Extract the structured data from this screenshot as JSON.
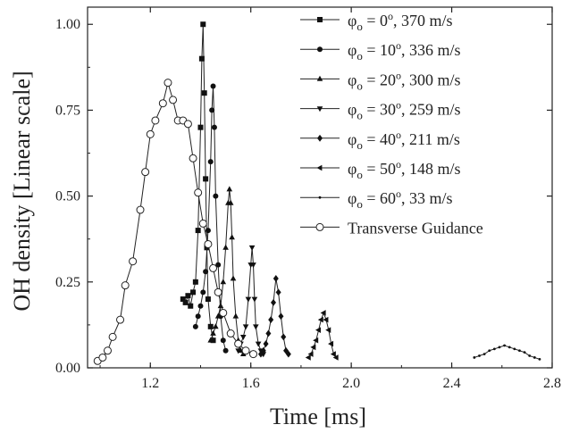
{
  "chart_data": {
    "type": "line",
    "title": "",
    "xlabel": "Time [ms]",
    "ylabel": "OH density [Linear scale]",
    "xlim": [
      0.95,
      2.8
    ],
    "ylim": [
      0.0,
      1.05
    ],
    "xticks": [
      1.2,
      1.6,
      2.0,
      2.4,
      2.8
    ],
    "yticks": [
      0.0,
      0.25,
      0.5,
      0.75,
      1.0
    ],
    "xtick_labels": [
      "1.2",
      "1.6",
      "2.0",
      "2.4",
      "2.8"
    ],
    "ytick_labels": [
      "0.00",
      "0.25",
      "0.50",
      "0.75",
      "1.00"
    ],
    "grid": false,
    "legend_position": "top-right",
    "series": [
      {
        "name": "φo = 0o, 370 m/s",
        "legend": {
          "symbol": "φ",
          "sub": "o",
          "eq": " = 0",
          "sup": "o",
          "rest": ", 370 m/s"
        },
        "marker": "square",
        "x": [
          1.33,
          1.34,
          1.35,
          1.36,
          1.37,
          1.38,
          1.39,
          1.4,
          1.405,
          1.41,
          1.415,
          1.42,
          1.425,
          1.43,
          1.44,
          1.45
        ],
        "y": [
          0.2,
          0.19,
          0.21,
          0.18,
          0.22,
          0.25,
          0.4,
          0.7,
          0.9,
          1.0,
          0.8,
          0.55,
          0.35,
          0.2,
          0.12,
          0.08
        ]
      },
      {
        "name": "φo = 10o, 336 m/s",
        "legend": {
          "symbol": "φ",
          "sub": "o",
          "eq": " = 10",
          "sup": "o",
          "rest": ", 336 m/s"
        },
        "marker": "circle",
        "x": [
          1.38,
          1.39,
          1.4,
          1.41,
          1.42,
          1.43,
          1.44,
          1.445,
          1.45,
          1.455,
          1.46,
          1.47,
          1.48,
          1.49,
          1.5
        ],
        "y": [
          0.12,
          0.15,
          0.18,
          0.22,
          0.28,
          0.4,
          0.6,
          0.75,
          0.82,
          0.7,
          0.5,
          0.3,
          0.15,
          0.08,
          0.05
        ]
      },
      {
        "name": "φo = 20o, 300 m/s",
        "legend": {
          "symbol": "φ",
          "sub": "o",
          "eq": " = 20",
          "sup": "o",
          "rest": ", 300 m/s"
        },
        "marker": "triangle-up",
        "x": [
          1.44,
          1.45,
          1.46,
          1.47,
          1.48,
          1.49,
          1.5,
          1.51,
          1.515,
          1.52,
          1.525,
          1.53,
          1.54,
          1.55,
          1.56,
          1.57
        ],
        "y": [
          0.08,
          0.1,
          0.12,
          0.15,
          0.18,
          0.25,
          0.35,
          0.48,
          0.52,
          0.48,
          0.38,
          0.26,
          0.15,
          0.08,
          0.05,
          0.04
        ]
      },
      {
        "name": "φo = 30o, 259 m/s",
        "legend": {
          "symbol": "φ",
          "sub": "o",
          "eq": " = 30",
          "sup": "o",
          "rest": ", 259 m/s"
        },
        "marker": "triangle-down",
        "x": [
          1.55,
          1.56,
          1.57,
          1.58,
          1.59,
          1.6,
          1.605,
          1.61,
          1.615,
          1.62,
          1.63,
          1.64,
          1.65
        ],
        "y": [
          0.05,
          0.07,
          0.09,
          0.12,
          0.2,
          0.3,
          0.35,
          0.3,
          0.2,
          0.12,
          0.07,
          0.05,
          0.04
        ]
      },
      {
        "name": "φo = 40o, 211 m/s",
        "legend": {
          "symbol": "φ",
          "sub": "o",
          "eq": " = 40",
          "sup": "o",
          "rest": ", 211 m/s"
        },
        "marker": "diamond",
        "x": [
          1.64,
          1.65,
          1.66,
          1.67,
          1.68,
          1.69,
          1.7,
          1.71,
          1.72,
          1.73,
          1.74,
          1.75
        ],
        "y": [
          0.04,
          0.05,
          0.07,
          0.1,
          0.14,
          0.19,
          0.26,
          0.22,
          0.15,
          0.09,
          0.05,
          0.04
        ]
      },
      {
        "name": "φo = 50o, 148 m/s",
        "legend": {
          "symbol": "φ",
          "sub": "o",
          "eq": " = 50",
          "sup": "o",
          "rest": ", 148 m/s"
        },
        "marker": "triangle-left",
        "x": [
          1.83,
          1.84,
          1.85,
          1.86,
          1.87,
          1.88,
          1.89,
          1.9,
          1.91,
          1.92,
          1.93,
          1.94
        ],
        "y": [
          0.03,
          0.04,
          0.06,
          0.08,
          0.11,
          0.14,
          0.16,
          0.14,
          0.11,
          0.07,
          0.04,
          0.03
        ]
      },
      {
        "name": "φo = 60o, 33 m/s",
        "legend": {
          "symbol": "φ",
          "sub": "o",
          "eq": " = 60",
          "sup": "o",
          "rest": ", 33 m/s"
        },
        "marker": "dot",
        "x": [
          2.49,
          2.51,
          2.53,
          2.55,
          2.57,
          2.59,
          2.61,
          2.63,
          2.65,
          2.67,
          2.69,
          2.71,
          2.73,
          2.75
        ],
        "y": [
          0.03,
          0.035,
          0.04,
          0.05,
          0.055,
          0.06,
          0.065,
          0.06,
          0.055,
          0.05,
          0.045,
          0.035,
          0.03,
          0.025
        ]
      },
      {
        "name": "Transverse Guidance",
        "legend": {
          "symbol": "",
          "sub": "",
          "eq": "Transverse Guidance",
          "sup": "",
          "rest": ""
        },
        "marker": "open-circle",
        "x": [
          0.99,
          1.01,
          1.03,
          1.05,
          1.08,
          1.1,
          1.13,
          1.16,
          1.18,
          1.2,
          1.22,
          1.25,
          1.27,
          1.29,
          1.31,
          1.33,
          1.35,
          1.37,
          1.39,
          1.41,
          1.43,
          1.45,
          1.47,
          1.49,
          1.52,
          1.55,
          1.58,
          1.61
        ],
        "y": [
          0.02,
          0.03,
          0.05,
          0.09,
          0.14,
          0.24,
          0.31,
          0.46,
          0.57,
          0.68,
          0.72,
          0.77,
          0.83,
          0.78,
          0.72,
          0.72,
          0.71,
          0.61,
          0.51,
          0.42,
          0.36,
          0.29,
          0.22,
          0.16,
          0.1,
          0.07,
          0.05,
          0.04
        ]
      }
    ]
  }
}
